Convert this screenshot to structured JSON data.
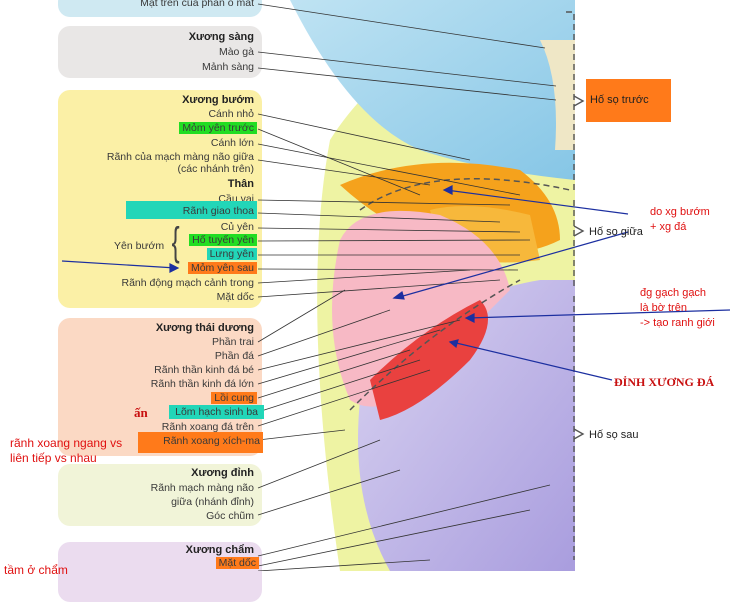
{
  "colors": {
    "orange_highlight": "#ff7a1a",
    "green_highlight": "#22dd22",
    "cyan_highlight": "#22d6b8",
    "annotation_red": "#e01010",
    "arrow_blue": "#1c2fa0"
  },
  "labels": {
    "top_partial": "Mặt trên của phần ổ mắt",
    "sang_title": "Xương sàng",
    "mao_ga": "Mào gà",
    "manh_sang": "Mảnh sàng",
    "buom_title": "Xương bướm",
    "canh_nho": "Cánh nhỏ",
    "mom_yen_truoc": "Mỏm yên trước",
    "canh_lon": "Cánh lớn",
    "ranh_mach_1": "Rãnh của mạch màng não giữa",
    "ranh_mach_2": "(các nhánh trên)",
    "than": "Thân",
    "cau_vai": "Cầu vai",
    "ranh_giao_thoa": "Rãnh giao thoa",
    "cu_yen": "Củ yên",
    "ho_tuyen_yen": "Hố tuyến yên",
    "lung_yen": "Lưng yên",
    "mom_yen_sau": "Mỏm yên sau",
    "yen_buom": "Yên bướm",
    "ranh_dong_mach": "Rãnh động mạch cảnh trong",
    "mat_doc": "Mặt dốc",
    "thai_duong_title": "Xương thái dương",
    "phan_trai": "Phần trai",
    "phan_da": "Phần đá",
    "ranh_tk_be": "Rãnh thần kinh đá bé",
    "ranh_tk_lon": "Rãnh thần kinh đá lớn",
    "loi_cung": "Lồi cung",
    "lom_hach": "Lõm hạch sinh ba",
    "ranh_xoang_da_tren": "Rãnh xoang đá trên",
    "ranh_xoang_xichma": "Rãnh xoang xích-ma",
    "dinh_title": "Xương đỉnh",
    "ranh_mach_nao_1": "Rãnh mạch màng não",
    "ranh_mach_nao_2": "giữa (nhánh đỉnh)",
    "goc_chum": "Góc chũm",
    "cham_title": "Xương chẩm",
    "mat_doc_2": "Mặt dốc"
  },
  "fossae": {
    "truoc": "Hố sọ trước",
    "giua": "Hố sọ giữa",
    "sau": "Hố sọ sau"
  },
  "annotations": {
    "do_xg_buom_1": "do xg bướm",
    "do_xg_buom_2": "+ xg đá",
    "dg_gach_1": "đg gạch gạch",
    "dg_gach_2": "là bờ trên",
    "dg_gach_3": "-> tạo ranh giới",
    "dinh_xuong_da": "ĐỈNH XƯƠNG ĐÁ",
    "an": "ấn",
    "ranh_xoang_ngang_1": "rãnh xoang ngang vs",
    "ranh_xoang_ngang_2": "liên tiếp vs nhau",
    "bottom_cut": "tầm ở chẩm"
  }
}
